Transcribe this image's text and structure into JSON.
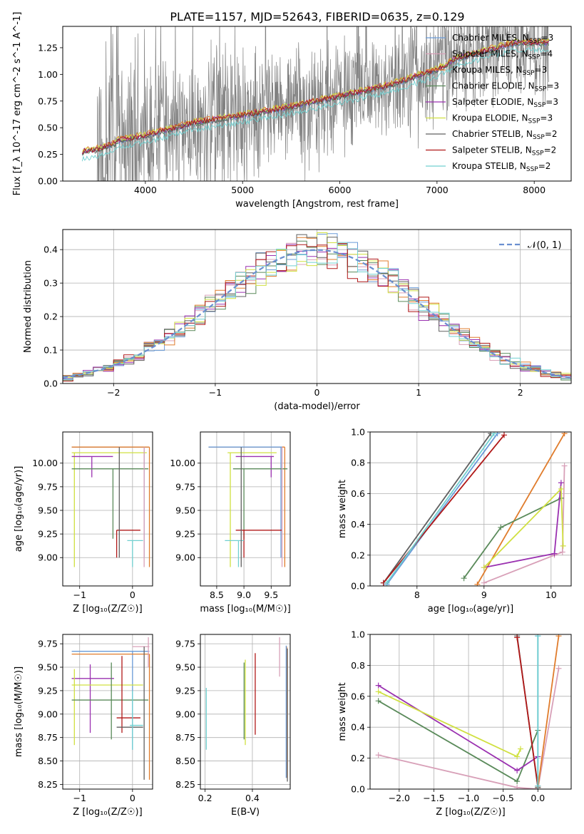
{
  "figure": {
    "title": "PLATE=1157, MJD=52643, FIBERID=0635, z=0.129",
    "colors": [
      "#6a9bd8",
      "#d8a0b8",
      "#e07c2c",
      "#5a8a5a",
      "#9a30b0",
      "#d0e040",
      "#606060",
      "#b01818",
      "#70d0d0"
    ]
  },
  "chart_data": [
    {
      "id": "spectrum",
      "type": "line",
      "title": "PLATE=1157, MJD=52643, FIBERID=0635, z=0.129",
      "xlabel": "wavelength [Angstrom, rest frame]",
      "ylabel": "Flux [f_λ 10^-17 erg cm^-2 s^-1 A^-1]",
      "xlim": [
        3150,
        8380
      ],
      "ylim": [
        0,
        1.45
      ],
      "xticks": [
        "4000",
        "5000",
        "6000",
        "7000",
        "8000"
      ],
      "yticks": [
        "0.00",
        "0.25",
        "0.50",
        "0.75",
        "1.00",
        "1.25"
      ],
      "grid": false,
      "legend_position": "top-right",
      "legend": [
        {
          "base": "Chabrier MILES, N",
          "sub": "SSP",
          "tail": "=3"
        },
        {
          "base": "Salpeter MILES, N",
          "sub": "SSP",
          "tail": "=4"
        },
        {
          "base": "Kroupa MILES, N",
          "sub": "SSP",
          "tail": "=3"
        },
        {
          "base": "Chabrier ELODIE, N",
          "sub": "SSP",
          "tail": "=3"
        },
        {
          "base": "Salpeter ELODIE, N",
          "sub": "SSP",
          "tail": "=3"
        },
        {
          "base": "Kroupa ELODIE, N",
          "sub": "SSP",
          "tail": "=3"
        },
        {
          "base": "Chabrier STELIB, N",
          "sub": "SSP",
          "tail": "=2"
        },
        {
          "base": "Salpeter STELIB, N",
          "sub": "SSP",
          "tail": "=2"
        },
        {
          "base": "Kroupa STELIB, N",
          "sub": "SSP",
          "tail": "=2"
        }
      ],
      "data_range": [
        3500,
        8150
      ],
      "model_continuum": {
        "x": [
          3350,
          3500,
          3700,
          4000,
          4500,
          5000,
          5500,
          6000,
          6500,
          7000,
          7200,
          7400,
          7800,
          8150
        ],
        "y": [
          0.3,
          0.32,
          0.38,
          0.43,
          0.55,
          0.62,
          0.7,
          0.8,
          0.9,
          1.05,
          1.15,
          1.2,
          1.3,
          1.3
        ]
      }
    },
    {
      "id": "residuals",
      "type": "histogram",
      "xlabel": "(data-model)/error",
      "ylabel": "Normed distribution",
      "xlim": [
        -2.5,
        2.5
      ],
      "ylim": [
        0,
        0.46
      ],
      "xticks": [
        "−2",
        "−1",
        "0",
        "1",
        "2"
      ],
      "yticks": [
        "0.0",
        "0.1",
        "0.2",
        "0.3",
        "0.4"
      ],
      "grid": true,
      "legend_position": "top-right",
      "legend": "𝒩(0, 1)",
      "bin_width": 0.1
    },
    {
      "id": "age-Z",
      "type": "errorbar",
      "xlabel": "Z [log₁₀(Z/Z☉)]",
      "ylabel": "age  [log₁₀(age/yr)]",
      "xlim": [
        -1.32,
        0.38
      ],
      "ylim": [
        8.7,
        10.33
      ],
      "xticks": [
        "−1",
        "0"
      ],
      "yticks": [
        "9.00",
        "9.25",
        "9.50",
        "9.75",
        "10.00"
      ],
      "grid": true
    },
    {
      "id": "age-mass",
      "type": "errorbar",
      "xlabel": "mass [log₁₀(M/M☉)]",
      "ylabel": "",
      "xlim": [
        8.2,
        9.85
      ],
      "ylim": [
        8.7,
        10.33
      ],
      "xticks": [
        "8.5",
        "9.0",
        "9.5"
      ],
      "yticks": [
        "9.00",
        "9.25",
        "9.50",
        "9.75",
        "10.00"
      ],
      "grid": true
    },
    {
      "id": "weight-age",
      "type": "line",
      "xlabel": "age  [log₁₀(age/yr)]",
      "ylabel": "mass weight",
      "xlim": [
        7.3,
        10.3
      ],
      "ylim": [
        0,
        1
      ],
      "xticks": [
        "8",
        "9",
        "10"
      ],
      "yticks": [
        "0.0",
        "0.2",
        "0.4",
        "0.6",
        "0.8",
        "1.0"
      ],
      "grid": true,
      "series": [
        {
          "x": [
            7.55,
            9.2
          ],
          "y": [
            0.01,
            0.99
          ]
        },
        {
          "x": [
            9.0,
            10.05,
            10.17,
            10.2
          ],
          "y": [
            0.02,
            0.2,
            0.22,
            0.78
          ]
        },
        {
          "x": [
            8.9,
            10.2
          ],
          "y": [
            0.01,
            0.99
          ]
        },
        {
          "x": [
            8.7,
            9.25,
            10.15
          ],
          "y": [
            0.05,
            0.38,
            0.57
          ]
        },
        {
          "x": [
            9.0,
            10.05,
            10.15
          ],
          "y": [
            0.12,
            0.21,
            0.67
          ]
        },
        {
          "x": [
            9.0,
            10.15,
            10.18
          ],
          "y": [
            0.12,
            0.63,
            0.26
          ]
        },
        {
          "x": [
            7.5,
            9.1
          ],
          "y": [
            0.02,
            0.99
          ]
        },
        {
          "x": [
            7.5,
            9.3
          ],
          "y": [
            0.02,
            0.98
          ]
        },
        {
          "x": [
            7.55,
            9.15
          ],
          "y": [
            0.02,
            0.99
          ]
        }
      ]
    },
    {
      "id": "mass-Z",
      "type": "errorbar",
      "xlabel": "Z [log₁₀(Z/Z☉)]",
      "ylabel": "mass [log₁₀(M/M☉)]",
      "xlim": [
        -1.32,
        0.38
      ],
      "ylim": [
        8.2,
        9.85
      ],
      "xticks": [
        "−1",
        "0"
      ],
      "yticks": [
        "8.25",
        "8.50",
        "8.75",
        "9.00",
        "9.25",
        "9.50",
        "9.75"
      ],
      "grid": true
    },
    {
      "id": "mass-EBV",
      "type": "errorbar",
      "xlabel": "E(B-V)",
      "ylabel": "",
      "xlim": [
        0.18,
        0.56
      ],
      "ylim": [
        8.2,
        9.85
      ],
      "xticks": [
        "0.2",
        "0.4"
      ],
      "yticks": [
        "8.25",
        "8.50",
        "8.75",
        "9.00",
        "9.25",
        "9.50",
        "9.75"
      ],
      "grid": true
    },
    {
      "id": "weight-Z",
      "type": "line",
      "xlabel": "Z [log₁₀(Z/Z☉)]",
      "ylabel": "mass weight",
      "xlim": [
        -2.42,
        0.48
      ],
      "ylim": [
        0,
        1
      ],
      "xticks": [
        "−2.0",
        "−1.5",
        "−1.0",
        "−0.5",
        "0.0"
      ],
      "yticks": [
        "0.0",
        "0.2",
        "0.4",
        "0.6",
        "0.8",
        "1.0"
      ],
      "grid": true,
      "series": [
        {
          "x": [
            0.0,
            0.0
          ],
          "y": [
            0.01,
            0.99
          ]
        },
        {
          "x": [
            -2.3,
            -0.3,
            0.0,
            0.3
          ],
          "y": [
            0.22,
            0.01,
            0.0,
            0.78
          ]
        },
        {
          "x": [
            0.0,
            0.3
          ],
          "y": [
            0.01,
            0.99
          ]
        },
        {
          "x": [
            -2.3,
            -0.3,
            0.0
          ],
          "y": [
            0.57,
            0.05,
            0.38
          ]
        },
        {
          "x": [
            -2.3,
            -0.3,
            0.0
          ],
          "y": [
            0.67,
            0.12,
            0.21
          ]
        },
        {
          "x": [
            -2.3,
            -0.3,
            -0.25
          ],
          "y": [
            0.63,
            0.21,
            0.26
          ]
        },
        {
          "x": [
            -0.3,
            0.0
          ],
          "y": [
            0.99,
            0.01
          ]
        },
        {
          "x": [
            -0.3,
            0.0
          ],
          "y": [
            0.98,
            0.02
          ]
        },
        {
          "x": [
            0.0,
            0.0
          ],
          "y": [
            0.02,
            0.99
          ]
        }
      ]
    }
  ]
}
